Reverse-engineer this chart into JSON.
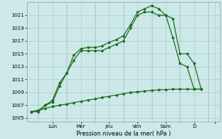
{
  "background_color": "#cce8e8",
  "grid_color": "#aacccc",
  "line_color": "#1a6b1a",
  "xlabel": "Pression niveau de la mer( hPa )",
  "ylim": [
    1004.5,
    1023
  ],
  "yticks": [
    1005,
    1007,
    1009,
    1011,
    1013,
    1015,
    1017,
    1019,
    1021
  ],
  "xlim": [
    -0.3,
    13.3
  ],
  "xtick_positions": [
    1.5,
    3.5,
    5.5,
    7.5,
    9.5,
    11.5,
    13.0
  ],
  "xtick_labels": [
    "Lun",
    "Mer",
    "Jeu",
    "Ven",
    "Sam",
    "D",
    ""
  ],
  "xvline_positions": [
    0.5,
    2.5,
    4.5,
    6.5,
    8.5,
    10.5,
    12.5
  ],
  "line1_x": [
    0,
    0.5,
    1,
    1.5,
    2,
    2.5,
    3,
    3.5,
    4,
    4.5,
    5,
    5.5,
    6,
    6.5,
    7,
    7.5,
    8,
    8.5,
    9,
    9.5,
    10,
    10.5,
    11,
    11.5,
    12
  ],
  "line1_y": [
    1006,
    1006,
    1007,
    1007.5,
    1010,
    1012,
    1014,
    1015.5,
    1015.5,
    1015.5,
    1015.5,
    1016,
    1016.5,
    1017,
    1019,
    1021,
    1021.5,
    1021.5,
    1021,
    1021,
    1020.5,
    1015,
    1015,
    1013.5,
    1009.5
  ],
  "line2_x": [
    0,
    0.5,
    1,
    1.5,
    2,
    2.5,
    3,
    3.5,
    4,
    4.5,
    5,
    5.5,
    6,
    6.5,
    7,
    7.5,
    8,
    8.5,
    9,
    9.5,
    10,
    10.5,
    11,
    11.5,
    12
  ],
  "line2_y": [
    1006,
    1006.2,
    1007,
    1007.8,
    1010.5,
    1012,
    1014.8,
    1015.8,
    1016,
    1016,
    1016.2,
    1016.8,
    1017.2,
    1017.8,
    1019.5,
    1021.5,
    1022,
    1022.5,
    1022,
    1021,
    1017.5,
    1013.5,
    1013,
    1009.5,
    1009.5
  ],
  "line3_x": [
    0,
    0.5,
    1,
    1.5,
    2,
    2.5,
    3,
    3.5,
    4,
    4.5,
    5,
    5.5,
    6,
    6.5,
    7,
    7.5,
    8,
    8.5,
    9,
    9.5,
    10,
    10.5,
    11,
    11.5,
    12
  ],
  "line3_y": [
    1006,
    1006.2,
    1006.5,
    1006.8,
    1007.0,
    1007.2,
    1007.4,
    1007.6,
    1007.8,
    1008.0,
    1008.2,
    1008.4,
    1008.6,
    1008.8,
    1009.0,
    1009.1,
    1009.2,
    1009.3,
    1009.4,
    1009.45,
    1009.5,
    1009.5,
    1009.5,
    1009.5,
    1009.5
  ]
}
